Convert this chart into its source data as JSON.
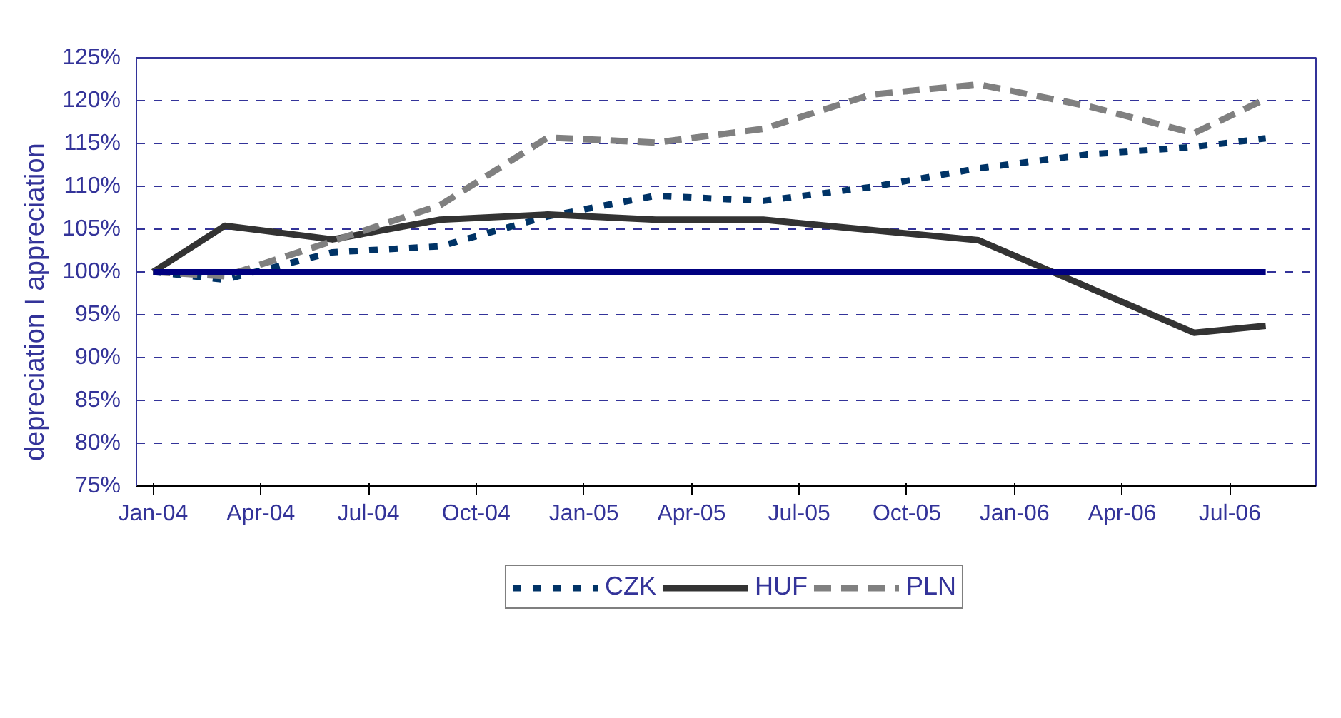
{
  "chart_data": {
    "type": "line",
    "ylabel": "depreciation     I     appreciation",
    "x": [
      "2004-01",
      "2004-03",
      "2004-06",
      "2004-09",
      "2004-12",
      "2005-03",
      "2005-06",
      "2005-09",
      "2005-12",
      "2006-03",
      "2006-06",
      "2006-08"
    ],
    "series": [
      {
        "name": "CZK",
        "color": "#003366",
        "line_style": "dotted",
        "values": [
          100,
          99.1,
          102.3,
          103.0,
          106.5,
          108.9,
          108.3,
          109.9,
          112.1,
          113.7,
          114.6,
          115.6
        ]
      },
      {
        "name": "HUF",
        "color": "#333333",
        "line_style": "solid",
        "values": [
          100,
          105.4,
          103.8,
          106.1,
          106.7,
          106.1,
          106.1,
          104.9,
          103.7,
          98.3,
          92.9,
          93.7
        ]
      },
      {
        "name": "PLN",
        "color": "#808080",
        "line_style": "dashed",
        "values": [
          100,
          99.5,
          103.6,
          107.8,
          115.7,
          115.1,
          116.7,
          120.7,
          121.9,
          119.4,
          116.2,
          120.2
        ]
      },
      {
        "color": "#000080",
        "line_style": "solid",
        "values": [
          100,
          100,
          100,
          100,
          100,
          100,
          100,
          100,
          100,
          100,
          100,
          100
        ]
      }
    ],
    "xlim": [
      "2003-12-17",
      "2006-09-13"
    ],
    "xticks": [
      {
        "value": "2004-01",
        "label": "Jan-04"
      },
      {
        "value": "2004-04",
        "label": "Apr-04"
      },
      {
        "value": "2004-07",
        "label": "Jul-04"
      },
      {
        "value": "2004-10",
        "label": "Oct-04"
      },
      {
        "value": "2005-01",
        "label": "Jan-05"
      },
      {
        "value": "2005-04",
        "label": "Apr-05"
      },
      {
        "value": "2005-07",
        "label": "Jul-05"
      },
      {
        "value": "2005-10",
        "label": "Oct-05"
      },
      {
        "value": "2006-01",
        "label": "Jan-06"
      },
      {
        "value": "2006-04",
        "label": "Apr-06"
      },
      {
        "value": "2006-07",
        "label": "Jul-06"
      }
    ],
    "ylim": [
      75,
      125
    ],
    "yticks": [
      {
        "value": 75,
        "label": "75%"
      },
      {
        "value": 80,
        "label": "80%"
      },
      {
        "value": 85,
        "label": "85%"
      },
      {
        "value": 90,
        "label": "90%"
      },
      {
        "value": 95,
        "label": "95%"
      },
      {
        "value": 100,
        "label": "100%"
      },
      {
        "value": 105,
        "label": "105%"
      },
      {
        "value": 110,
        "label": "110%"
      },
      {
        "value": 115,
        "label": "115%"
      },
      {
        "value": 120,
        "label": "120%"
      },
      {
        "value": 125,
        "label": "125%"
      }
    ],
    "grid": "y",
    "legend": "bottom",
    "marker": "none"
  }
}
